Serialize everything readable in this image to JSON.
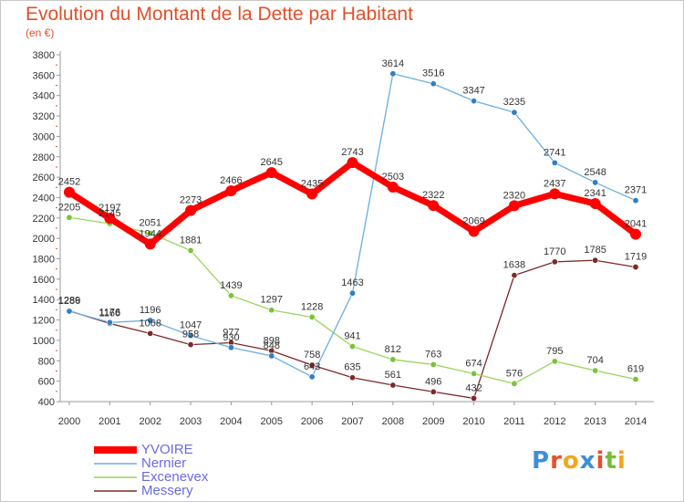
{
  "title": "Evolution du Montant de la Dette par Habitant",
  "subtitle": "(en €)",
  "logo": {
    "text": "Proxiti",
    "colors": [
      "#3b8fd6",
      "#e8502a",
      "#f2a51f",
      "#3b8fd6",
      "#e8502a",
      "#7ab93a",
      "#f2a51f"
    ]
  },
  "chart_data": {
    "type": "line",
    "x": [
      2000,
      2001,
      2002,
      2003,
      2004,
      2005,
      2006,
      2007,
      2008,
      2009,
      2010,
      2011,
      2012,
      2013,
      2014
    ],
    "ylim": [
      400,
      3800
    ],
    "yticks": [
      400,
      600,
      800,
      1000,
      1200,
      1400,
      1600,
      1800,
      2000,
      2200,
      2400,
      2600,
      2800,
      3000,
      3200,
      3400,
      3600,
      3800
    ],
    "grid": false,
    "legend_position": "bottom-left",
    "series": [
      {
        "name": "YVOIRE",
        "color": "#ff0000",
        "marker": "#ff0000",
        "values": [
          2452,
          2197,
          1944,
          2273,
          2466,
          2645,
          2435,
          2743,
          2503,
          2322,
          2069,
          2320,
          2437,
          2341,
          2041
        ]
      },
      {
        "name": "Nernier",
        "color": "#6aaee0",
        "marker": "#2f7fc4",
        "values": [
          1286,
          1176,
          1196,
          1047,
          930,
          848,
          643,
          1463,
          3614,
          3516,
          3347,
          3235,
          2741,
          2548,
          2371
        ]
      },
      {
        "name": "Excenevex",
        "color": "#9ad45e",
        "marker": "#7cc13c",
        "values": [
          2205,
          2145,
          2051,
          1881,
          1439,
          1297,
          1228,
          941,
          812,
          763,
          674,
          576,
          795,
          704,
          619
        ]
      },
      {
        "name": "Messery",
        "color": "#7a2a2a",
        "marker": "#7a2a2a",
        "values": [
          1289,
          1166,
          1068,
          958,
          977,
          898,
          758,
          635,
          561,
          496,
          432,
          1638,
          1770,
          1785,
          1719
        ]
      }
    ]
  }
}
